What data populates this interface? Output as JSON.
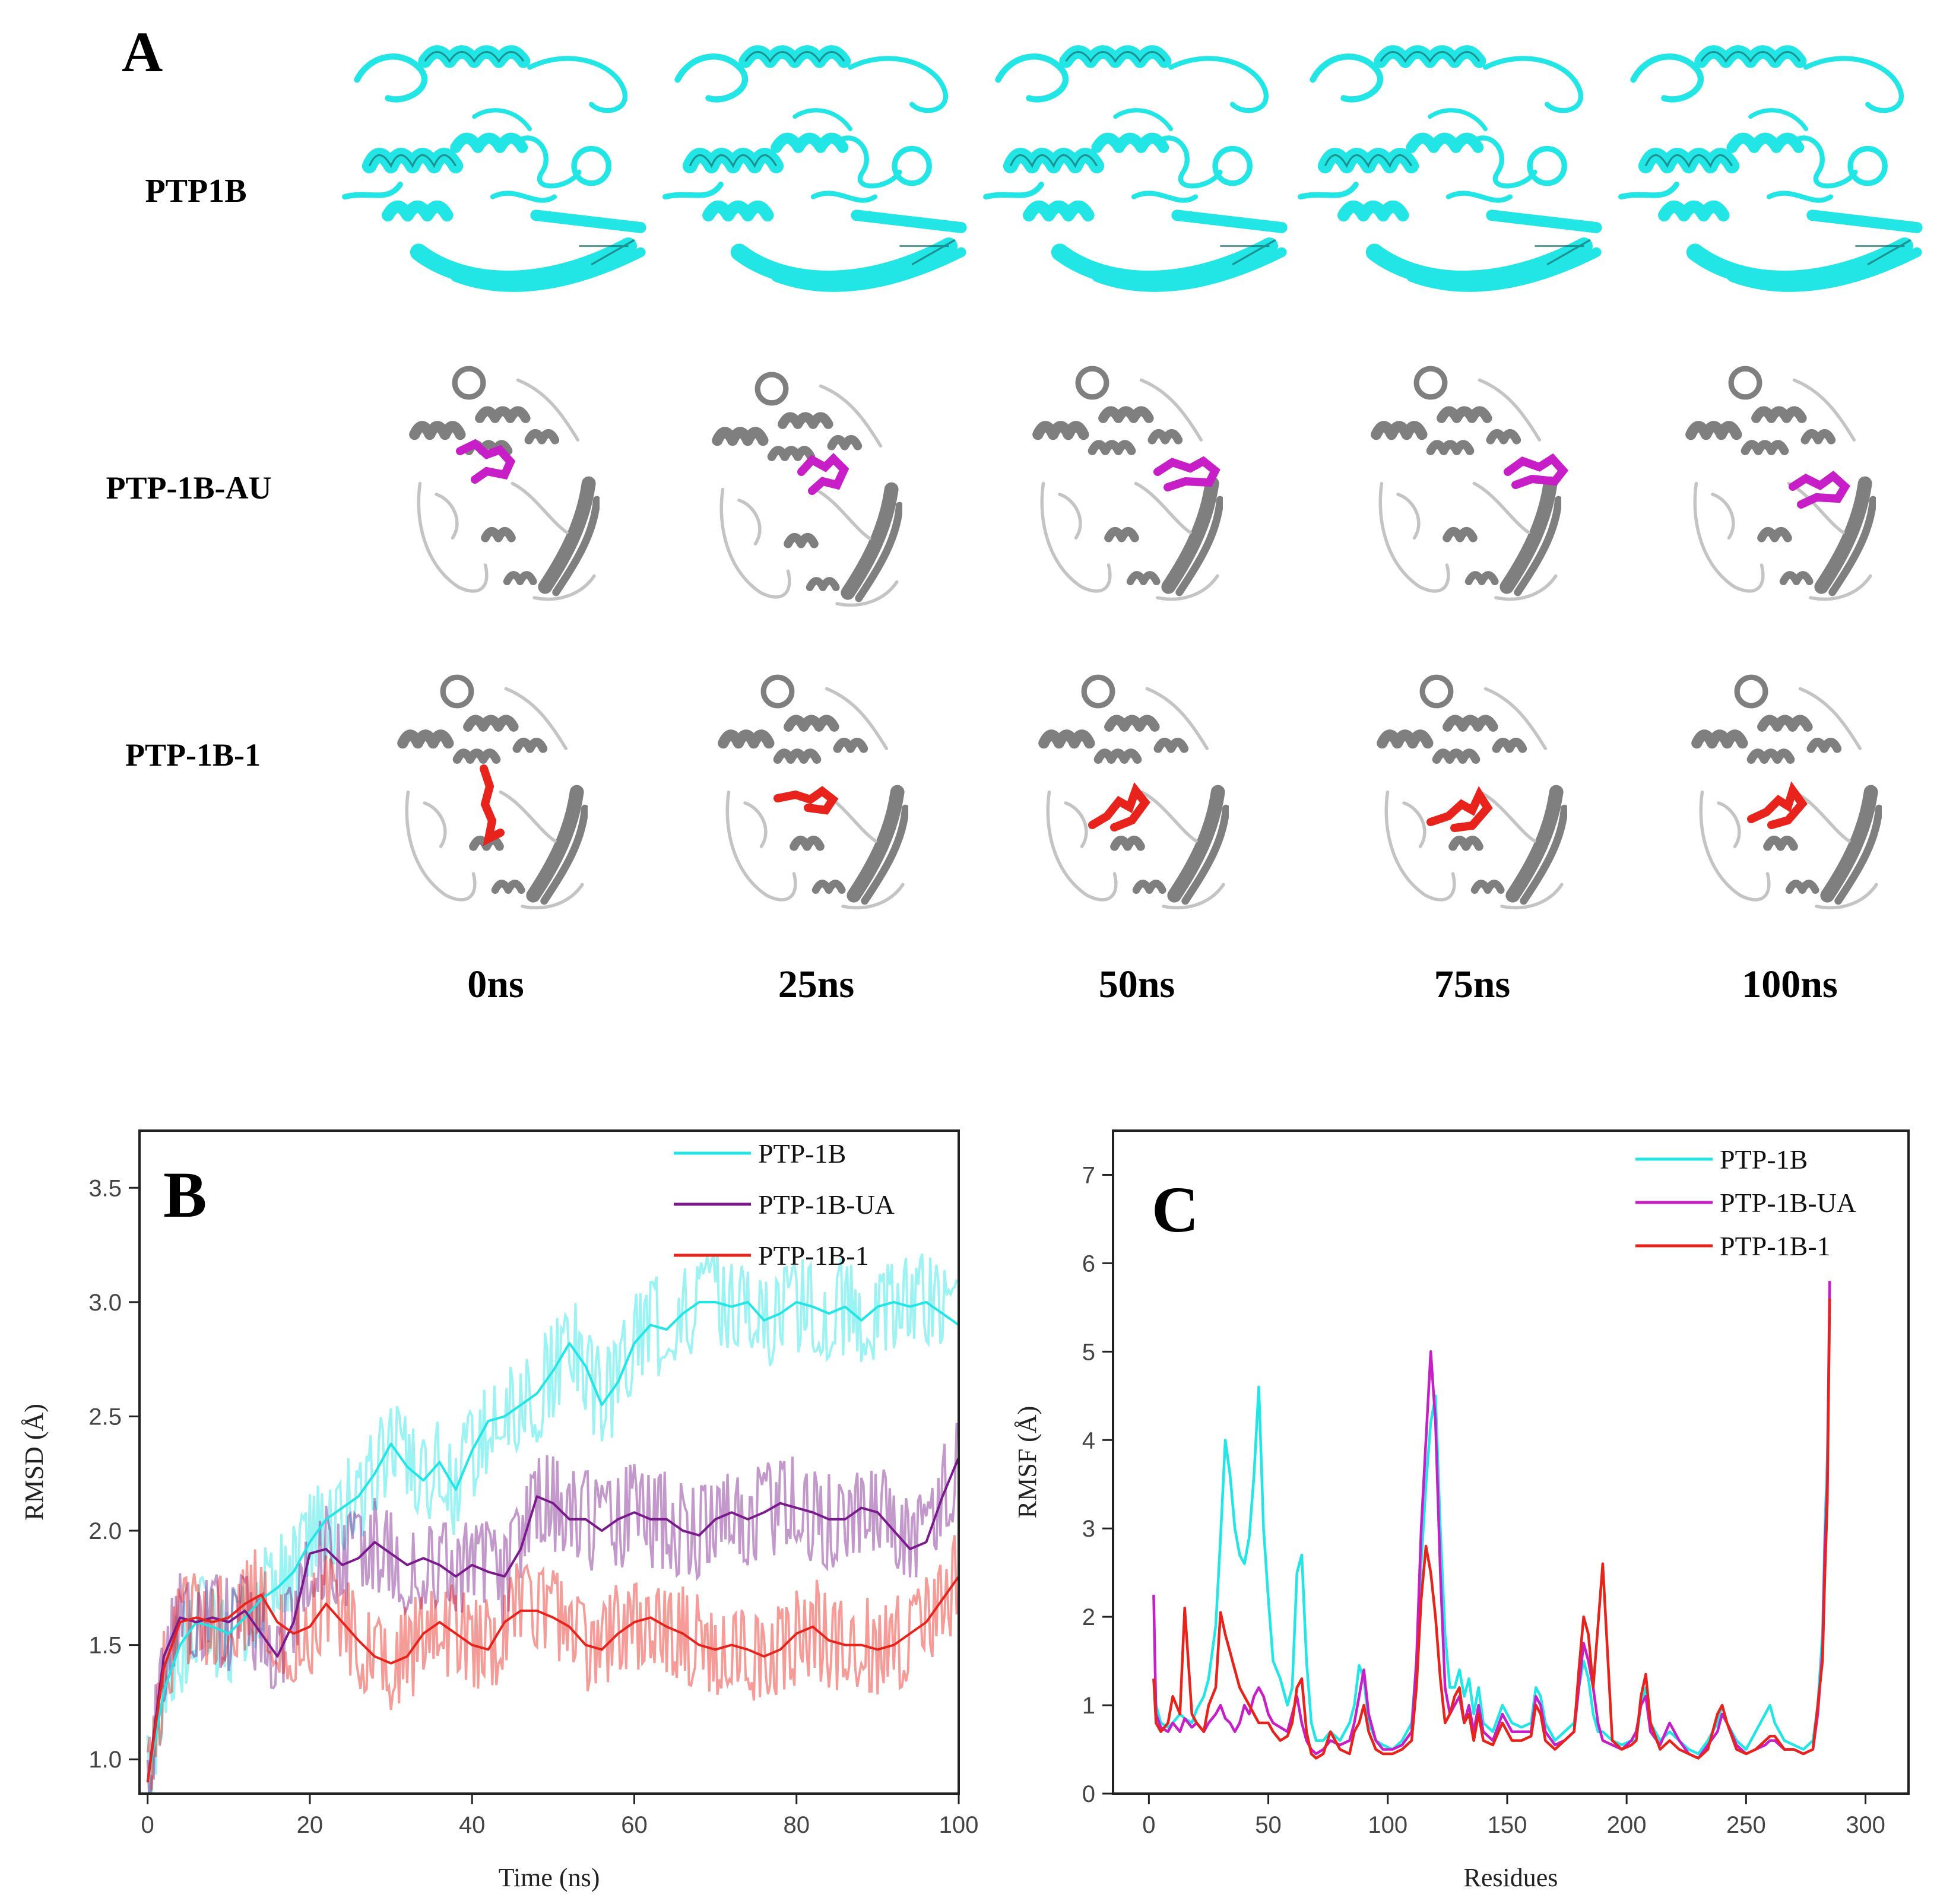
{
  "panelA": {
    "letter": "A",
    "rows": [
      {
        "label": "PTP1B",
        "style": "cyan"
      },
      {
        "label": "PTP-1B-AU",
        "style": "grey-magenta"
      },
      {
        "label": "PTP-1B-1",
        "style": "grey-red"
      }
    ],
    "time_labels": [
      "0ns",
      "25ns",
      "50ns",
      "75ns",
      "100ns"
    ]
  },
  "colors": {
    "cyan": "#22e5e5",
    "purple": "#7a1a8c",
    "magenta": "#c81ec8",
    "red": "#e8231b",
    "protein_grey": "#8c8c8c"
  },
  "chart_data": [
    {
      "id": "B",
      "type": "line",
      "letter": "B",
      "xlabel": "Time (ns)",
      "ylabel": "RMSD (Å)",
      "xlim": [
        -1,
        100
      ],
      "ylim": [
        0.85,
        3.75
      ],
      "xticks": [
        0,
        20,
        40,
        60,
        80,
        100
      ],
      "yticks": [
        1.0,
        1.5,
        2.0,
        2.5,
        3.0,
        3.5
      ],
      "legend_position": "top-right",
      "series": [
        {
          "name": "PTP-1B",
          "color": "#22e5e5",
          "x": [
            0,
            2,
            4,
            6,
            8,
            10,
            12,
            14,
            16,
            18,
            20,
            22,
            24,
            26,
            28,
            30,
            32,
            34,
            36,
            38,
            40,
            42,
            44,
            46,
            48,
            50,
            52,
            54,
            56,
            58,
            60,
            62,
            64,
            66,
            68,
            70,
            72,
            74,
            76,
            78,
            80,
            82,
            84,
            86,
            88,
            90,
            92,
            94,
            96,
            98,
            100
          ],
          "y": [
            0.9,
            1.3,
            1.5,
            1.6,
            1.58,
            1.55,
            1.62,
            1.7,
            1.75,
            1.82,
            1.95,
            2.05,
            2.1,
            2.15,
            2.25,
            2.38,
            2.28,
            2.22,
            2.3,
            2.18,
            2.35,
            2.48,
            2.5,
            2.55,
            2.6,
            2.7,
            2.82,
            2.72,
            2.55,
            2.65,
            2.82,
            2.9,
            2.88,
            2.95,
            3.0,
            3.0,
            2.98,
            3.0,
            2.92,
            2.95,
            3.0,
            2.98,
            2.95,
            2.98,
            2.92,
            2.98,
            3.0,
            2.98,
            3.0,
            2.95,
            2.9
          ]
        },
        {
          "name": "PTP-1B-UA",
          "color": "#7a1a8c",
          "x": [
            0,
            2,
            4,
            6,
            8,
            10,
            12,
            14,
            16,
            18,
            20,
            22,
            24,
            26,
            28,
            30,
            32,
            34,
            36,
            38,
            40,
            42,
            44,
            46,
            48,
            50,
            52,
            54,
            56,
            58,
            60,
            62,
            64,
            66,
            68,
            70,
            72,
            74,
            76,
            78,
            80,
            82,
            84,
            86,
            88,
            90,
            92,
            94,
            96,
            98,
            100
          ],
          "y": [
            0.9,
            1.45,
            1.62,
            1.6,
            1.62,
            1.6,
            1.65,
            1.55,
            1.45,
            1.6,
            1.9,
            1.92,
            1.85,
            1.88,
            1.95,
            1.9,
            1.85,
            1.88,
            1.85,
            1.8,
            1.85,
            1.82,
            1.8,
            1.92,
            2.15,
            2.12,
            2.05,
            2.05,
            2.0,
            2.05,
            2.08,
            2.05,
            2.05,
            2.0,
            1.98,
            2.05,
            2.08,
            2.05,
            2.08,
            2.12,
            2.1,
            2.08,
            2.05,
            2.05,
            2.1,
            2.08,
            2.0,
            1.92,
            1.95,
            2.15,
            2.32
          ]
        },
        {
          "name": "PTP-1B-1",
          "color": "#e8231b",
          "x": [
            0,
            2,
            4,
            6,
            8,
            10,
            12,
            14,
            16,
            18,
            20,
            22,
            24,
            26,
            28,
            30,
            32,
            34,
            36,
            38,
            40,
            42,
            44,
            46,
            48,
            50,
            52,
            54,
            56,
            58,
            60,
            62,
            64,
            66,
            68,
            70,
            72,
            74,
            76,
            78,
            80,
            82,
            84,
            86,
            88,
            90,
            92,
            94,
            96,
            98,
            100
          ],
          "y": [
            0.9,
            1.4,
            1.6,
            1.62,
            1.6,
            1.62,
            1.68,
            1.72,
            1.6,
            1.55,
            1.58,
            1.68,
            1.6,
            1.52,
            1.45,
            1.42,
            1.45,
            1.55,
            1.6,
            1.55,
            1.5,
            1.48,
            1.6,
            1.65,
            1.65,
            1.62,
            1.58,
            1.5,
            1.48,
            1.55,
            1.6,
            1.62,
            1.58,
            1.55,
            1.5,
            1.48,
            1.5,
            1.48,
            1.45,
            1.48,
            1.55,
            1.58,
            1.52,
            1.5,
            1.5,
            1.48,
            1.5,
            1.55,
            1.6,
            1.7,
            1.8
          ]
        }
      ]
    },
    {
      "id": "C",
      "type": "line",
      "letter": "C",
      "xlabel": "Residues",
      "ylabel": "RMSF (Å)",
      "xlim": [
        -15,
        318
      ],
      "ylim": [
        0,
        7.5
      ],
      "xticks": [
        0,
        50,
        100,
        150,
        200,
        250,
        300
      ],
      "yticks": [
        0,
        1,
        2,
        3,
        4,
        5,
        6,
        7
      ],
      "legend_position": "top-right",
      "series": [
        {
          "name": "PTP-1B",
          "color": "#22e5e5",
          "x": [
            2,
            3,
            5,
            8,
            10,
            13,
            15,
            18,
            20,
            23,
            25,
            28,
            30,
            32,
            34,
            36,
            38,
            40,
            42,
            44,
            46,
            48,
            50,
            52,
            55,
            58,
            60,
            62,
            64,
            66,
            68,
            70,
            73,
            76,
            80,
            84,
            86,
            88,
            90,
            92,
            95,
            98,
            102,
            106,
            110,
            112,
            114,
            116,
            118,
            120,
            122,
            124,
            126,
            128,
            130,
            132,
            134,
            136,
            138,
            140,
            144,
            148,
            152,
            156,
            160,
            162,
            164,
            166,
            170,
            174,
            178,
            180,
            182,
            184,
            186,
            188,
            190,
            194,
            198,
            202,
            204,
            206,
            208,
            210,
            214,
            218,
            222,
            226,
            230,
            234,
            238,
            240,
            242,
            246,
            250,
            254,
            258,
            260,
            262,
            266,
            270,
            274,
            278,
            280,
            282,
            283,
            284,
            285
          ],
          "y": [
            1.3,
            1.0,
            0.8,
            0.75,
            0.8,
            0.9,
            0.85,
            0.8,
            0.95,
            1.1,
            1.3,
            1.9,
            2.9,
            4.0,
            3.6,
            3.0,
            2.7,
            2.6,
            2.9,
            3.6,
            4.6,
            3.0,
            2.2,
            1.5,
            1.3,
            1.0,
            1.2,
            2.5,
            2.7,
            1.5,
            0.8,
            0.6,
            0.6,
            0.7,
            0.6,
            0.8,
            1.0,
            1.45,
            1.3,
            0.8,
            0.6,
            0.55,
            0.5,
            0.6,
            0.8,
            1.5,
            2.6,
            3.5,
            4.2,
            4.5,
            3.0,
            1.8,
            1.2,
            1.2,
            1.4,
            1.1,
            1.3,
            0.9,
            1.2,
            0.8,
            0.7,
            1.0,
            0.8,
            0.75,
            0.8,
            1.2,
            1.1,
            0.8,
            0.6,
            0.7,
            0.8,
            1.2,
            1.5,
            1.3,
            0.9,
            0.7,
            0.7,
            0.6,
            0.55,
            0.6,
            0.6,
            1.0,
            1.2,
            0.8,
            0.6,
            0.7,
            0.6,
            0.5,
            0.45,
            0.6,
            0.8,
            1.0,
            0.8,
            0.6,
            0.5,
            0.7,
            0.9,
            1.0,
            0.8,
            0.6,
            0.55,
            0.5,
            0.6,
            1.0,
            1.8,
            3.0,
            3.8,
            5.4
          ]
        },
        {
          "name": "PTP-1B-UA",
          "color": "#c81ec8",
          "x": [
            2,
            3,
            5,
            8,
            10,
            13,
            15,
            18,
            20,
            23,
            25,
            28,
            30,
            32,
            34,
            36,
            38,
            40,
            42,
            44,
            46,
            48,
            50,
            52,
            55,
            58,
            60,
            62,
            64,
            66,
            68,
            70,
            73,
            76,
            80,
            84,
            86,
            88,
            90,
            92,
            95,
            98,
            102,
            106,
            110,
            112,
            114,
            116,
            118,
            120,
            122,
            124,
            126,
            128,
            130,
            132,
            134,
            136,
            138,
            140,
            144,
            148,
            152,
            156,
            160,
            162,
            164,
            166,
            170,
            174,
            178,
            180,
            182,
            184,
            186,
            188,
            190,
            194,
            198,
            202,
            204,
            206,
            208,
            210,
            214,
            218,
            222,
            226,
            230,
            234,
            238,
            240,
            242,
            246,
            250,
            254,
            258,
            260,
            262,
            266,
            270,
            274,
            278,
            280,
            282,
            283,
            284,
            285
          ],
          "y": [
            2.25,
            0.9,
            0.75,
            0.7,
            0.8,
            0.7,
            0.85,
            0.75,
            0.8,
            0.7,
            0.8,
            0.9,
            1.0,
            0.85,
            0.8,
            0.7,
            0.8,
            1.0,
            0.9,
            1.1,
            1.2,
            1.1,
            0.9,
            0.8,
            0.75,
            0.7,
            0.9,
            1.1,
            0.8,
            0.6,
            0.5,
            0.45,
            0.5,
            0.6,
            0.55,
            0.6,
            0.8,
            1.1,
            1.4,
            0.9,
            0.6,
            0.5,
            0.5,
            0.55,
            0.7,
            1.5,
            3.0,
            4.0,
            5.0,
            4.2,
            2.5,
            1.2,
            0.9,
            1.0,
            1.1,
            0.8,
            1.0,
            0.7,
            1.0,
            0.7,
            0.6,
            0.9,
            0.7,
            0.7,
            0.7,
            1.1,
            1.0,
            0.7,
            0.55,
            0.6,
            0.7,
            1.2,
            1.7,
            1.5,
            1.2,
            0.8,
            0.6,
            0.55,
            0.5,
            0.6,
            0.7,
            1.0,
            1.1,
            0.7,
            0.55,
            0.8,
            0.6,
            0.45,
            0.4,
            0.55,
            0.7,
            0.9,
            0.8,
            0.55,
            0.45,
            0.5,
            0.55,
            0.6,
            0.6,
            0.5,
            0.5,
            0.45,
            0.5,
            0.9,
            1.6,
            2.8,
            3.5,
            5.8
          ]
        },
        {
          "name": "PTP-1B-1",
          "color": "#e8231b",
          "x": [
            2,
            3,
            5,
            8,
            10,
            13,
            15,
            18,
            20,
            23,
            25,
            28,
            30,
            32,
            34,
            36,
            38,
            40,
            42,
            44,
            46,
            48,
            50,
            52,
            55,
            58,
            60,
            62,
            64,
            66,
            68,
            70,
            73,
            76,
            80,
            84,
            86,
            88,
            90,
            92,
            95,
            98,
            102,
            106,
            110,
            112,
            114,
            116,
            118,
            120,
            122,
            124,
            126,
            128,
            130,
            132,
            134,
            136,
            138,
            140,
            144,
            148,
            152,
            156,
            160,
            162,
            164,
            166,
            170,
            174,
            178,
            180,
            182,
            184,
            186,
            188,
            190,
            194,
            198,
            202,
            204,
            206,
            208,
            210,
            214,
            218,
            222,
            226,
            230,
            234,
            238,
            240,
            242,
            246,
            250,
            254,
            258,
            260,
            262,
            266,
            270,
            274,
            278,
            280,
            282,
            283,
            284,
            285
          ],
          "y": [
            1.3,
            0.8,
            0.7,
            0.8,
            1.1,
            0.9,
            2.1,
            0.9,
            0.8,
            0.7,
            1.0,
            1.2,
            2.05,
            1.8,
            1.6,
            1.4,
            1.2,
            1.1,
            1.0,
            0.9,
            0.8,
            0.8,
            0.8,
            0.7,
            0.6,
            0.65,
            0.8,
            1.2,
            1.3,
            0.7,
            0.45,
            0.4,
            0.45,
            0.7,
            0.5,
            0.45,
            0.7,
            0.8,
            1.0,
            0.7,
            0.5,
            0.45,
            0.45,
            0.5,
            0.6,
            1.2,
            2.2,
            2.8,
            2.5,
            2.0,
            1.3,
            0.8,
            0.9,
            1.1,
            1.2,
            0.8,
            0.9,
            0.6,
            0.9,
            0.6,
            0.55,
            0.8,
            0.6,
            0.6,
            0.65,
            1.0,
            0.9,
            0.6,
            0.5,
            0.6,
            0.7,
            1.4,
            2.0,
            1.8,
            1.2,
            1.9,
            2.6,
            0.6,
            0.5,
            0.55,
            0.6,
            1.1,
            1.35,
            0.8,
            0.5,
            0.6,
            0.5,
            0.45,
            0.4,
            0.5,
            0.9,
            1.0,
            0.8,
            0.5,
            0.45,
            0.5,
            0.6,
            0.65,
            0.65,
            0.5,
            0.5,
            0.45,
            0.5,
            1.0,
            1.5,
            2.5,
            3.3,
            5.6
          ]
        }
      ]
    }
  ]
}
